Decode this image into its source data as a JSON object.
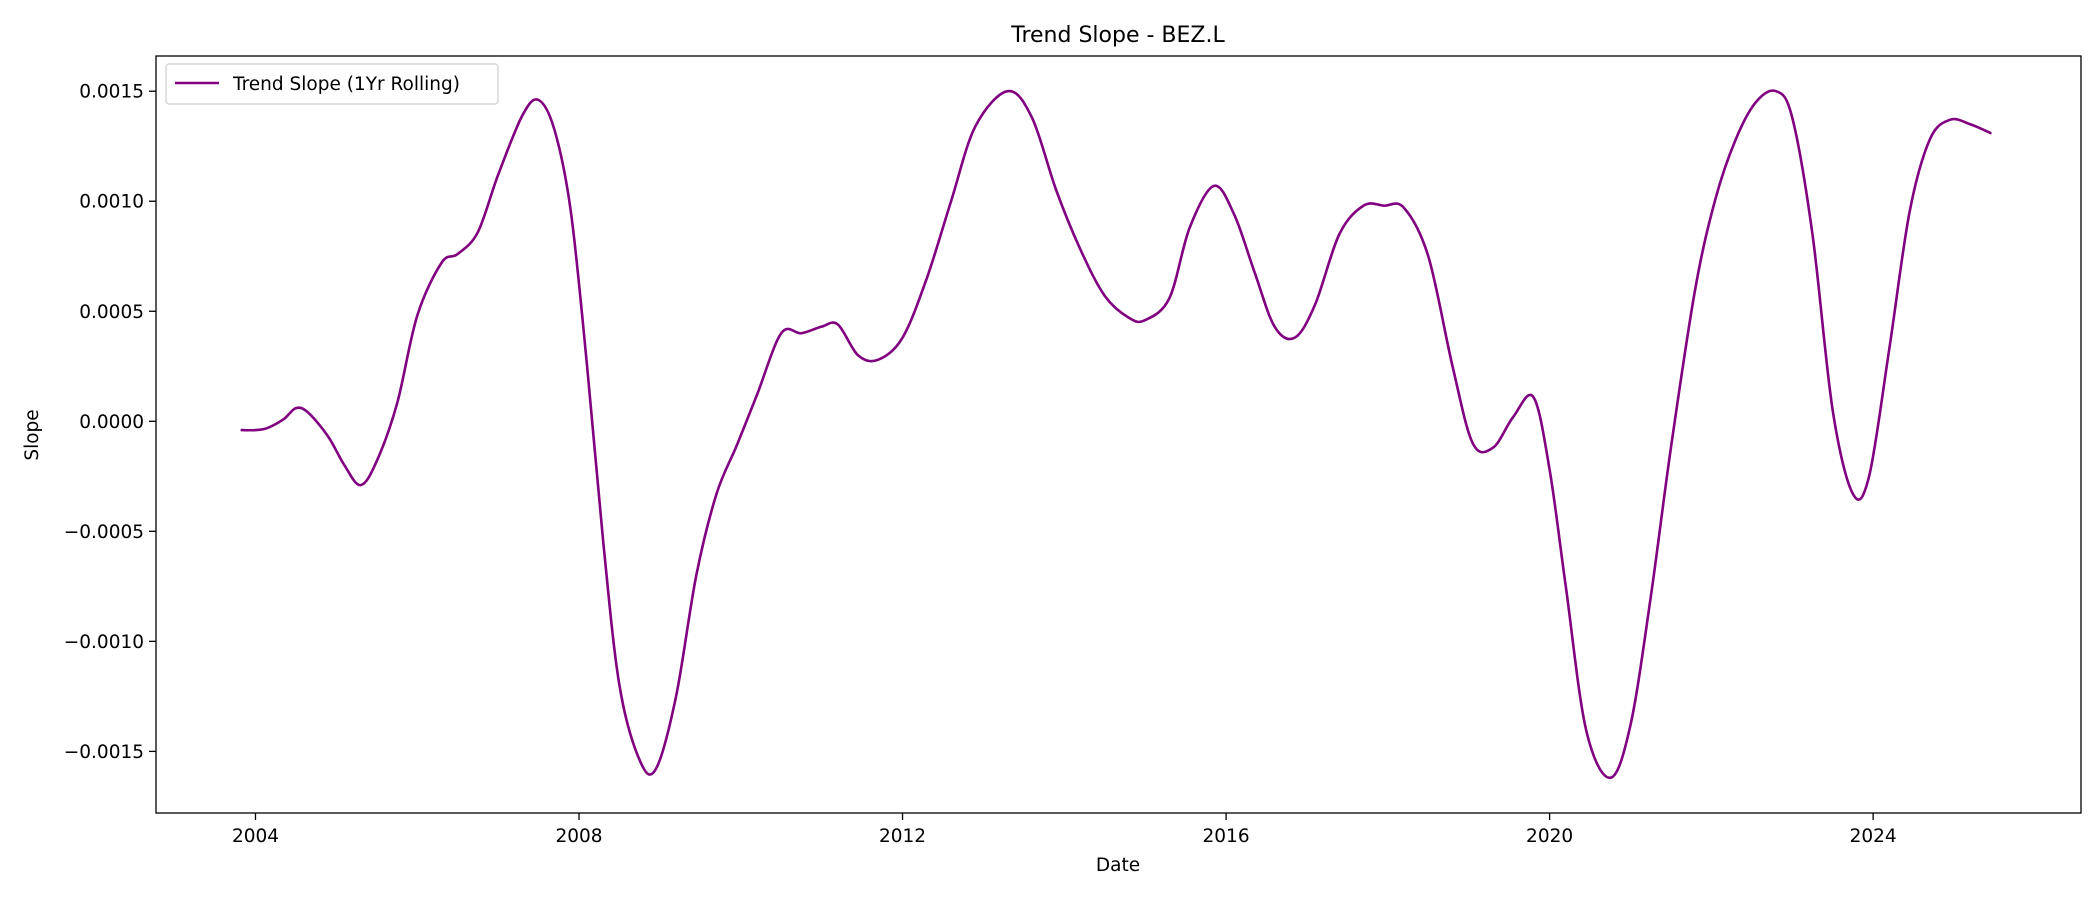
{
  "chart_data": {
    "type": "line",
    "title": "Trend Slope - BEZ.L",
    "xlabel": "Date",
    "ylabel": "Slope",
    "x_ticks": [
      "2004",
      "2008",
      "2012",
      "2016",
      "2020",
      "2024"
    ],
    "y_ticks": [
      "0.0015",
      "0.0010",
      "0.0005",
      "0.0000",
      "−0.0005",
      "−0.0010",
      "−0.0015"
    ],
    "xlim": [
      "2002.77",
      "2026.57"
    ],
    "ylim": [
      -0.00178,
      0.00166
    ],
    "grid": false,
    "legend_position": "upper-left",
    "series": [
      {
        "name": "Trend Slope (1Yr Rolling)",
        "color": "#800080",
        "x": [
          2003.83,
          2004.0,
          2004.15,
          2004.35,
          2004.5,
          2004.65,
          2004.9,
          2005.1,
          2005.3,
          2005.5,
          2005.75,
          2006.0,
          2006.3,
          2006.5,
          2006.75,
          2007.0,
          2007.3,
          2007.5,
          2007.7,
          2007.9,
          2008.1,
          2008.3,
          2008.5,
          2008.75,
          2008.95,
          2009.2,
          2009.45,
          2009.7,
          2009.95,
          2010.2,
          2010.5,
          2010.75,
          2011.0,
          2011.2,
          2011.45,
          2011.7,
          2012.0,
          2012.3,
          2012.6,
          2012.9,
          2013.3,
          2013.6,
          2013.9,
          2014.2,
          2014.5,
          2014.8,
          2015.0,
          2015.3,
          2015.55,
          2015.85,
          2016.1,
          2016.35,
          2016.6,
          2016.85,
          2017.1,
          2017.4,
          2017.7,
          2017.95,
          2018.2,
          2018.5,
          2018.8,
          2019.05,
          2019.3,
          2019.55,
          2019.8,
          2020.0,
          2020.2,
          2020.45,
          2020.75,
          2021.0,
          2021.25,
          2021.5,
          2021.8,
          2022.05,
          2022.3,
          2022.55,
          2022.8,
          2023.0,
          2023.25,
          2023.5,
          2023.75,
          2023.95,
          2024.2,
          2024.45,
          2024.7,
          2024.95,
          2025.2,
          2025.45
        ],
        "values": [
          -4e-05,
          -4e-05,
          -3e-05,
          1e-05,
          6e-05,
          4e-05,
          -7e-05,
          -0.0002,
          -0.00029,
          -0.00018,
          8e-05,
          0.00048,
          0.00072,
          0.00076,
          0.00086,
          0.00112,
          0.00139,
          0.00146,
          0.00132,
          0.00095,
          0.00025,
          -0.00055,
          -0.0012,
          -0.00154,
          -0.00158,
          -0.00125,
          -0.0007,
          -0.00033,
          -0.00011,
          0.00012,
          0.0004,
          0.0004,
          0.00043,
          0.00044,
          0.0003,
          0.00028,
          0.00038,
          0.00065,
          0.001,
          0.00134,
          0.0015,
          0.00138,
          0.00105,
          0.00078,
          0.00057,
          0.00047,
          0.00046,
          0.00056,
          0.00088,
          0.00107,
          0.00094,
          0.00068,
          0.00043,
          0.00038,
          0.00053,
          0.00085,
          0.00098,
          0.00098,
          0.00097,
          0.00075,
          0.00025,
          -0.0001,
          -0.00012,
          2e-05,
          0.00011,
          -0.00022,
          -0.00075,
          -0.0014,
          -0.00162,
          -0.00138,
          -0.0008,
          -0.00012,
          0.0006,
          0.00101,
          0.00128,
          0.00145,
          0.0015,
          0.00138,
          0.00085,
          5e-05,
          -0.00033,
          -0.00025,
          0.00033,
          0.00095,
          0.00128,
          0.00137,
          0.00135,
          0.00131
        ]
      }
    ]
  }
}
